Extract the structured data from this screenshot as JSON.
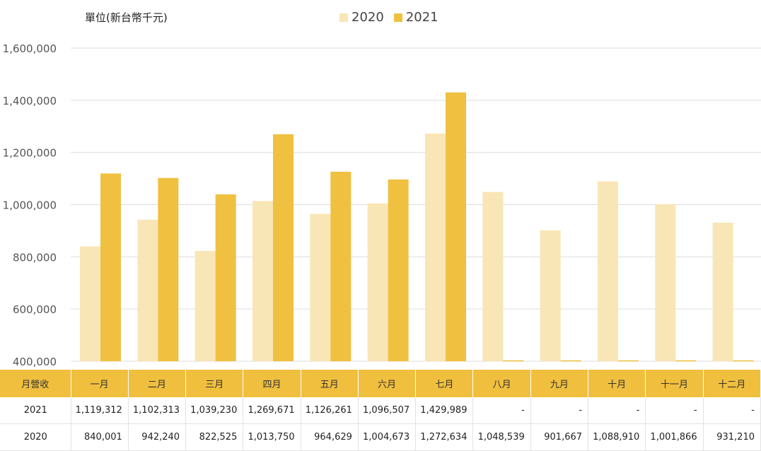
{
  "unit_label": "單位(新台幣千元)",
  "colors": {
    "s2020": "#f9e6b6",
    "s2021": "#f0c040",
    "grid": "#dddddd",
    "header": "#f0bf3d"
  },
  "table": {
    "corner": "月營收",
    "rows": [
      {
        "label": "2021",
        "cells": [
          "1,119,312",
          "1,102,313",
          "1,039,230",
          "1,269,671",
          "1,126,261",
          "1,096,507",
          "1,429,989",
          "-",
          "-",
          "-",
          "-",
          "-"
        ]
      },
      {
        "label": "2020",
        "cells": [
          "840,001",
          "942,240",
          "822,525",
          "1,013,750",
          "964,629",
          "1,004,673",
          "1,272,634",
          "1,048,539",
          "901,667",
          "1,088,910",
          "1,001,866",
          "931,210"
        ]
      }
    ]
  },
  "chart_data": {
    "type": "bar",
    "categories": [
      "一月",
      "二月",
      "三月",
      "四月",
      "五月",
      "六月",
      "七月",
      "八月",
      "九月",
      "十月",
      "十一月",
      "十二月"
    ],
    "series": [
      {
        "name": "2020",
        "values": [
          840001,
          942240,
          822525,
          1013750,
          964629,
          1004673,
          1272634,
          1048539,
          901667,
          1088910,
          1001866,
          931210
        ]
      },
      {
        "name": "2021",
        "values": [
          1119312,
          1102313,
          1039230,
          1269671,
          1126261,
          1096507,
          1429989,
          null,
          null,
          null,
          null,
          null
        ]
      }
    ],
    "ylim": [
      400000,
      1600000
    ],
    "yticks": [
      "400,000",
      "600,000",
      "800,000",
      "1,000,000",
      "1,200,000",
      "1,400,000",
      "1,600,000"
    ],
    "ytick_values": [
      400000,
      600000,
      800000,
      1000000,
      1200000,
      1400000,
      1600000
    ],
    "legend_position": "top-center",
    "grid": true
  }
}
